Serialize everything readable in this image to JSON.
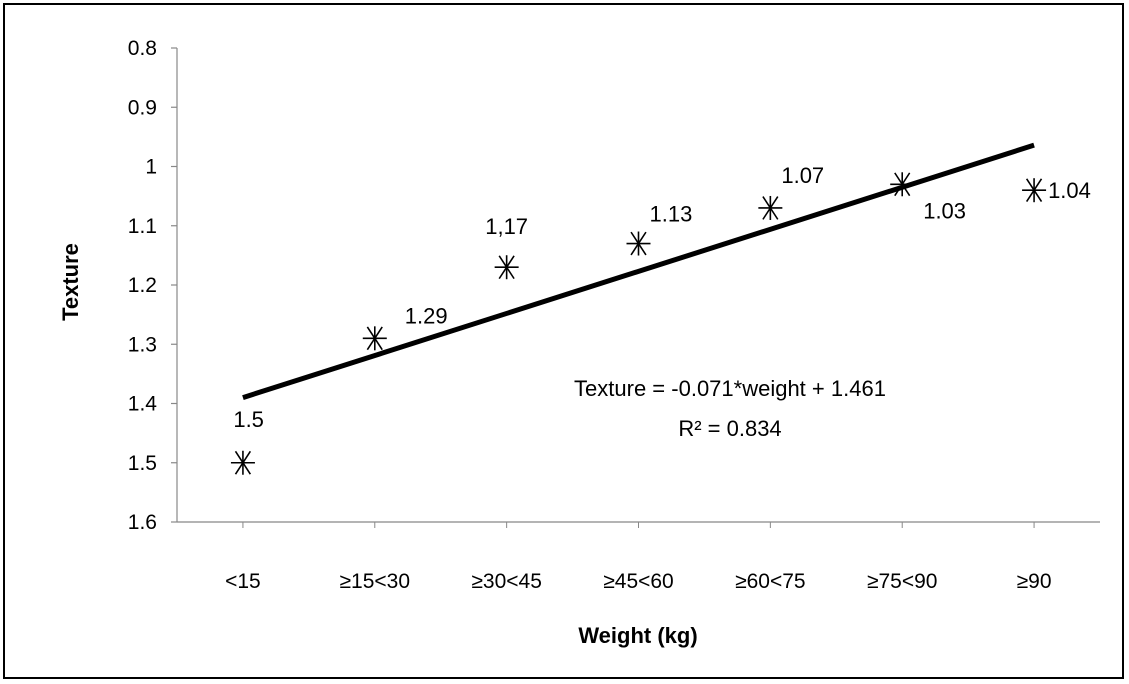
{
  "chart_data": {
    "type": "scatter",
    "xlabel": "Weight (kg)",
    "ylabel": "Texture",
    "categories": [
      "<15",
      "≥15<30",
      "≥30<45",
      "≥45<60",
      "≥60<75",
      "≥75<90",
      "≥90"
    ],
    "y_axis_reversed": true,
    "ylim": [
      0.8,
      1.6
    ],
    "yticks": [
      "0.8",
      "0.9",
      "1",
      "1.1",
      "1.2",
      "1.3",
      "1.4",
      "1.5",
      "1.6"
    ],
    "grid": false,
    "marker": "asterisk",
    "series": [
      {
        "values": [
          1.5,
          1.29,
          1.17,
          1.13,
          1.07,
          1.03,
          1.04
        ],
        "data_labels": [
          "1.5",
          "1.29",
          "1,17",
          "1.13",
          "1.07",
          "1.03",
          "1.04"
        ]
      }
    ],
    "trendline": {
      "type": "linear",
      "slope": -0.071,
      "intercept": 1.461,
      "equation_text": "Texture = -0.071*weight + 1.461",
      "r2_text": "R² = 0.834"
    }
  }
}
